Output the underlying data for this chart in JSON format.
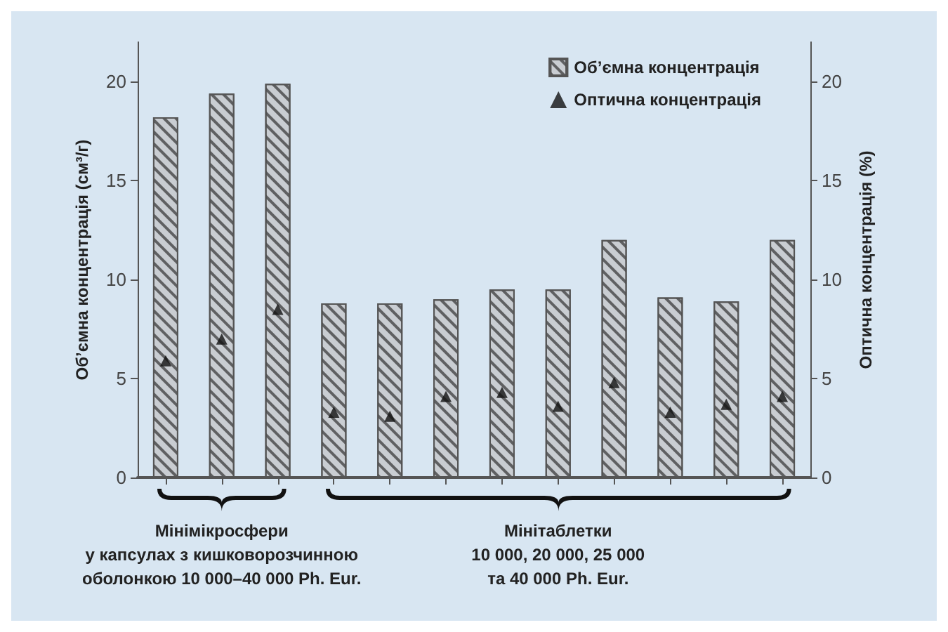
{
  "chart_data": {
    "type": "bar",
    "ylabel": "Об’ємна концентрація (см³/г)",
    "y2label": "Оптична концентрація (%)",
    "categories": [
      null,
      null,
      null,
      null,
      null,
      null,
      null,
      null,
      null,
      null,
      null,
      null
    ],
    "series": [
      {
        "name": "Об’ємна концентрація",
        "color": "#c9cdd2",
        "values": [
          18.2,
          19.4,
          19.9,
          8.8,
          8.8,
          9.0,
          9.5,
          9.5,
          12.0,
          9.1,
          8.9,
          12.0
        ]
      },
      {
        "name": "Оптична концентрація",
        "type": "scatter",
        "axis": "y2",
        "marker": "triangle",
        "color": "#111111",
        "values": [
          5.9,
          7.0,
          8.5,
          3.3,
          3.1,
          4.1,
          4.3,
          3.6,
          4.8,
          3.3,
          3.7,
          4.1
        ]
      }
    ],
    "ylim": [
      0,
      22
    ],
    "yticks": [
      0,
      5,
      10,
      15,
      20
    ],
    "y2lim": [
      0,
      22
    ],
    "y2ticks": [
      0,
      5,
      10,
      15,
      20
    ],
    "legend": "top right",
    "grid": false,
    "annotations": [
      "Мінімікросфери\nу капсулах з кишковорозчинною\nоболонкою 10 000–40 000 Ph. Eur.",
      "Мінітаблетки\n10 000, 20 000, 25 000\nта 40 000 Ph. Eur."
    ]
  }
}
